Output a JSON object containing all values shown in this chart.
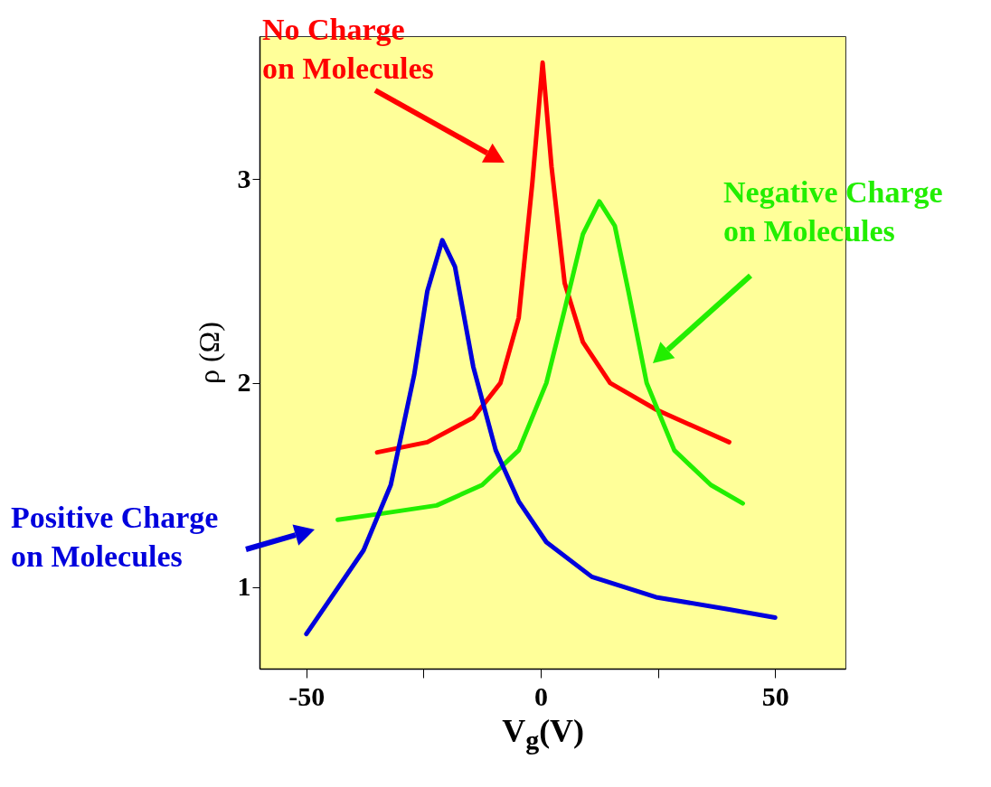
{
  "chart_data": {
    "type": "line",
    "xlabel": "V$_{g}$(V)",
    "ylabel": "ρ (Ω)",
    "xlim": [
      -60,
      65
    ],
    "ylim": [
      0.6,
      3.7
    ],
    "xticks": [
      -50,
      {
        "value": -25,
        "label": null
      },
      0,
      {
        "value": 25,
        "label": null
      },
      50
    ],
    "yticks": [
      1,
      2,
      3
    ],
    "grid": false,
    "marker": "none",
    "line_style": "solid",
    "series": [
      {
        "name": null,
        "color": "#ff0000",
        "x": [
          -34.9,
          -24.2,
          -14.4,
          -8.6,
          -4.7,
          -1.8,
          0.4,
          2.3,
          5.1,
          9.0,
          14.8,
          24.6,
          40.2
        ],
        "values": [
          1.66,
          1.71,
          1.83,
          2.0,
          2.32,
          2.98,
          3.57,
          3.06,
          2.49,
          2.2,
          2.0,
          1.87,
          1.71
        ]
      },
      {
        "name": null,
        "color": "#22ee00",
        "x": [
          -43.3,
          -33.9,
          -22.2,
          -12.5,
          -4.7,
          1.2,
          5.1,
          9.0,
          12.5,
          15.8,
          18.7,
          22.6,
          28.5,
          36.3,
          43.1
        ],
        "values": [
          1.33,
          1.36,
          1.4,
          1.5,
          1.67,
          2.0,
          2.36,
          2.73,
          2.89,
          2.77,
          2.45,
          2.0,
          1.67,
          1.5,
          1.41
        ]
      },
      {
        "name": null,
        "color": "#0000dd",
        "x": [
          -50,
          -37.8,
          -32,
          -27,
          -24.2,
          -21,
          -18.3,
          -14.4,
          -9.6,
          -4.7,
          1.2,
          10.9,
          24.6,
          40.2,
          50
        ],
        "values": [
          0.77,
          1.18,
          1.5,
          2.04,
          2.45,
          2.7,
          2.57,
          2.08,
          1.67,
          1.42,
          1.22,
          1.05,
          0.95,
          0.89,
          0.85
        ]
      }
    ],
    "annotations": [
      "No Charge on Molecules",
      "Negative Charge on Molecules",
      "Positive Charge on Molecules"
    ]
  }
}
